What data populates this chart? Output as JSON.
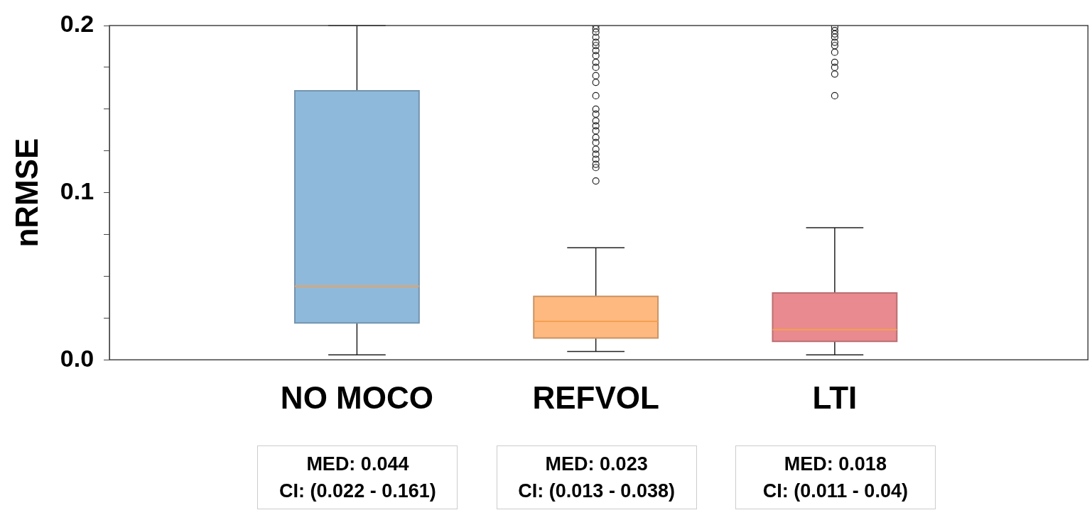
{
  "chart_data": {
    "type": "box",
    "ylabel": "nRMSE",
    "categories": [
      "NO MOCO",
      "REFVOL",
      "LTI"
    ],
    "colors": [
      "#8fb9da",
      "#fdb97f",
      "#e88a8f"
    ],
    "boxes": [
      {
        "low": 0.003,
        "q1": 0.022,
        "median": 0.044,
        "q3": 0.161,
        "high": 0.2
      },
      {
        "low": 0.005,
        "q1": 0.013,
        "median": 0.023,
        "q3": 0.038,
        "high": 0.067,
        "outliers": [
          0.107,
          0.115,
          0.117,
          0.12,
          0.123,
          0.126,
          0.13,
          0.133,
          0.137,
          0.14,
          0.143,
          0.147,
          0.15,
          0.158,
          0.166,
          0.17,
          0.175,
          0.178,
          0.182,
          0.185,
          0.188,
          0.19,
          0.193,
          0.196,
          0.198,
          0.2
        ]
      },
      {
        "low": 0.003,
        "q1": 0.011,
        "median": 0.018,
        "q3": 0.04,
        "high": 0.079,
        "outliers": [
          0.158,
          0.171,
          0.175,
          0.178,
          0.184,
          0.188,
          0.19,
          0.193,
          0.195,
          0.197,
          0.199
        ]
      }
    ],
    "ylim": [
      0,
      0.2
    ],
    "yticks": [
      {
        "value": 0,
        "label": "0.0"
      },
      {
        "value": 0.025,
        "label": null
      },
      {
        "value": 0.05,
        "label": null
      },
      {
        "value": 0.075,
        "label": null
      },
      {
        "value": 0.1,
        "label": "0.1"
      },
      {
        "value": 0.125,
        "label": null
      },
      {
        "value": 0.15,
        "label": null
      },
      {
        "value": 0.175,
        "label": null
      },
      {
        "value": 0.2,
        "label": "0.2"
      }
    ],
    "grid": false,
    "legend": false,
    "marker": "circle",
    "annotations": [
      "MED: 0.044\nCI: (0.022 - 0.161)",
      "MED: 0.023\nCI: (0.013 - 0.038)",
      "MED: 0.018\nCI: (0.011 - 0.04)"
    ]
  }
}
